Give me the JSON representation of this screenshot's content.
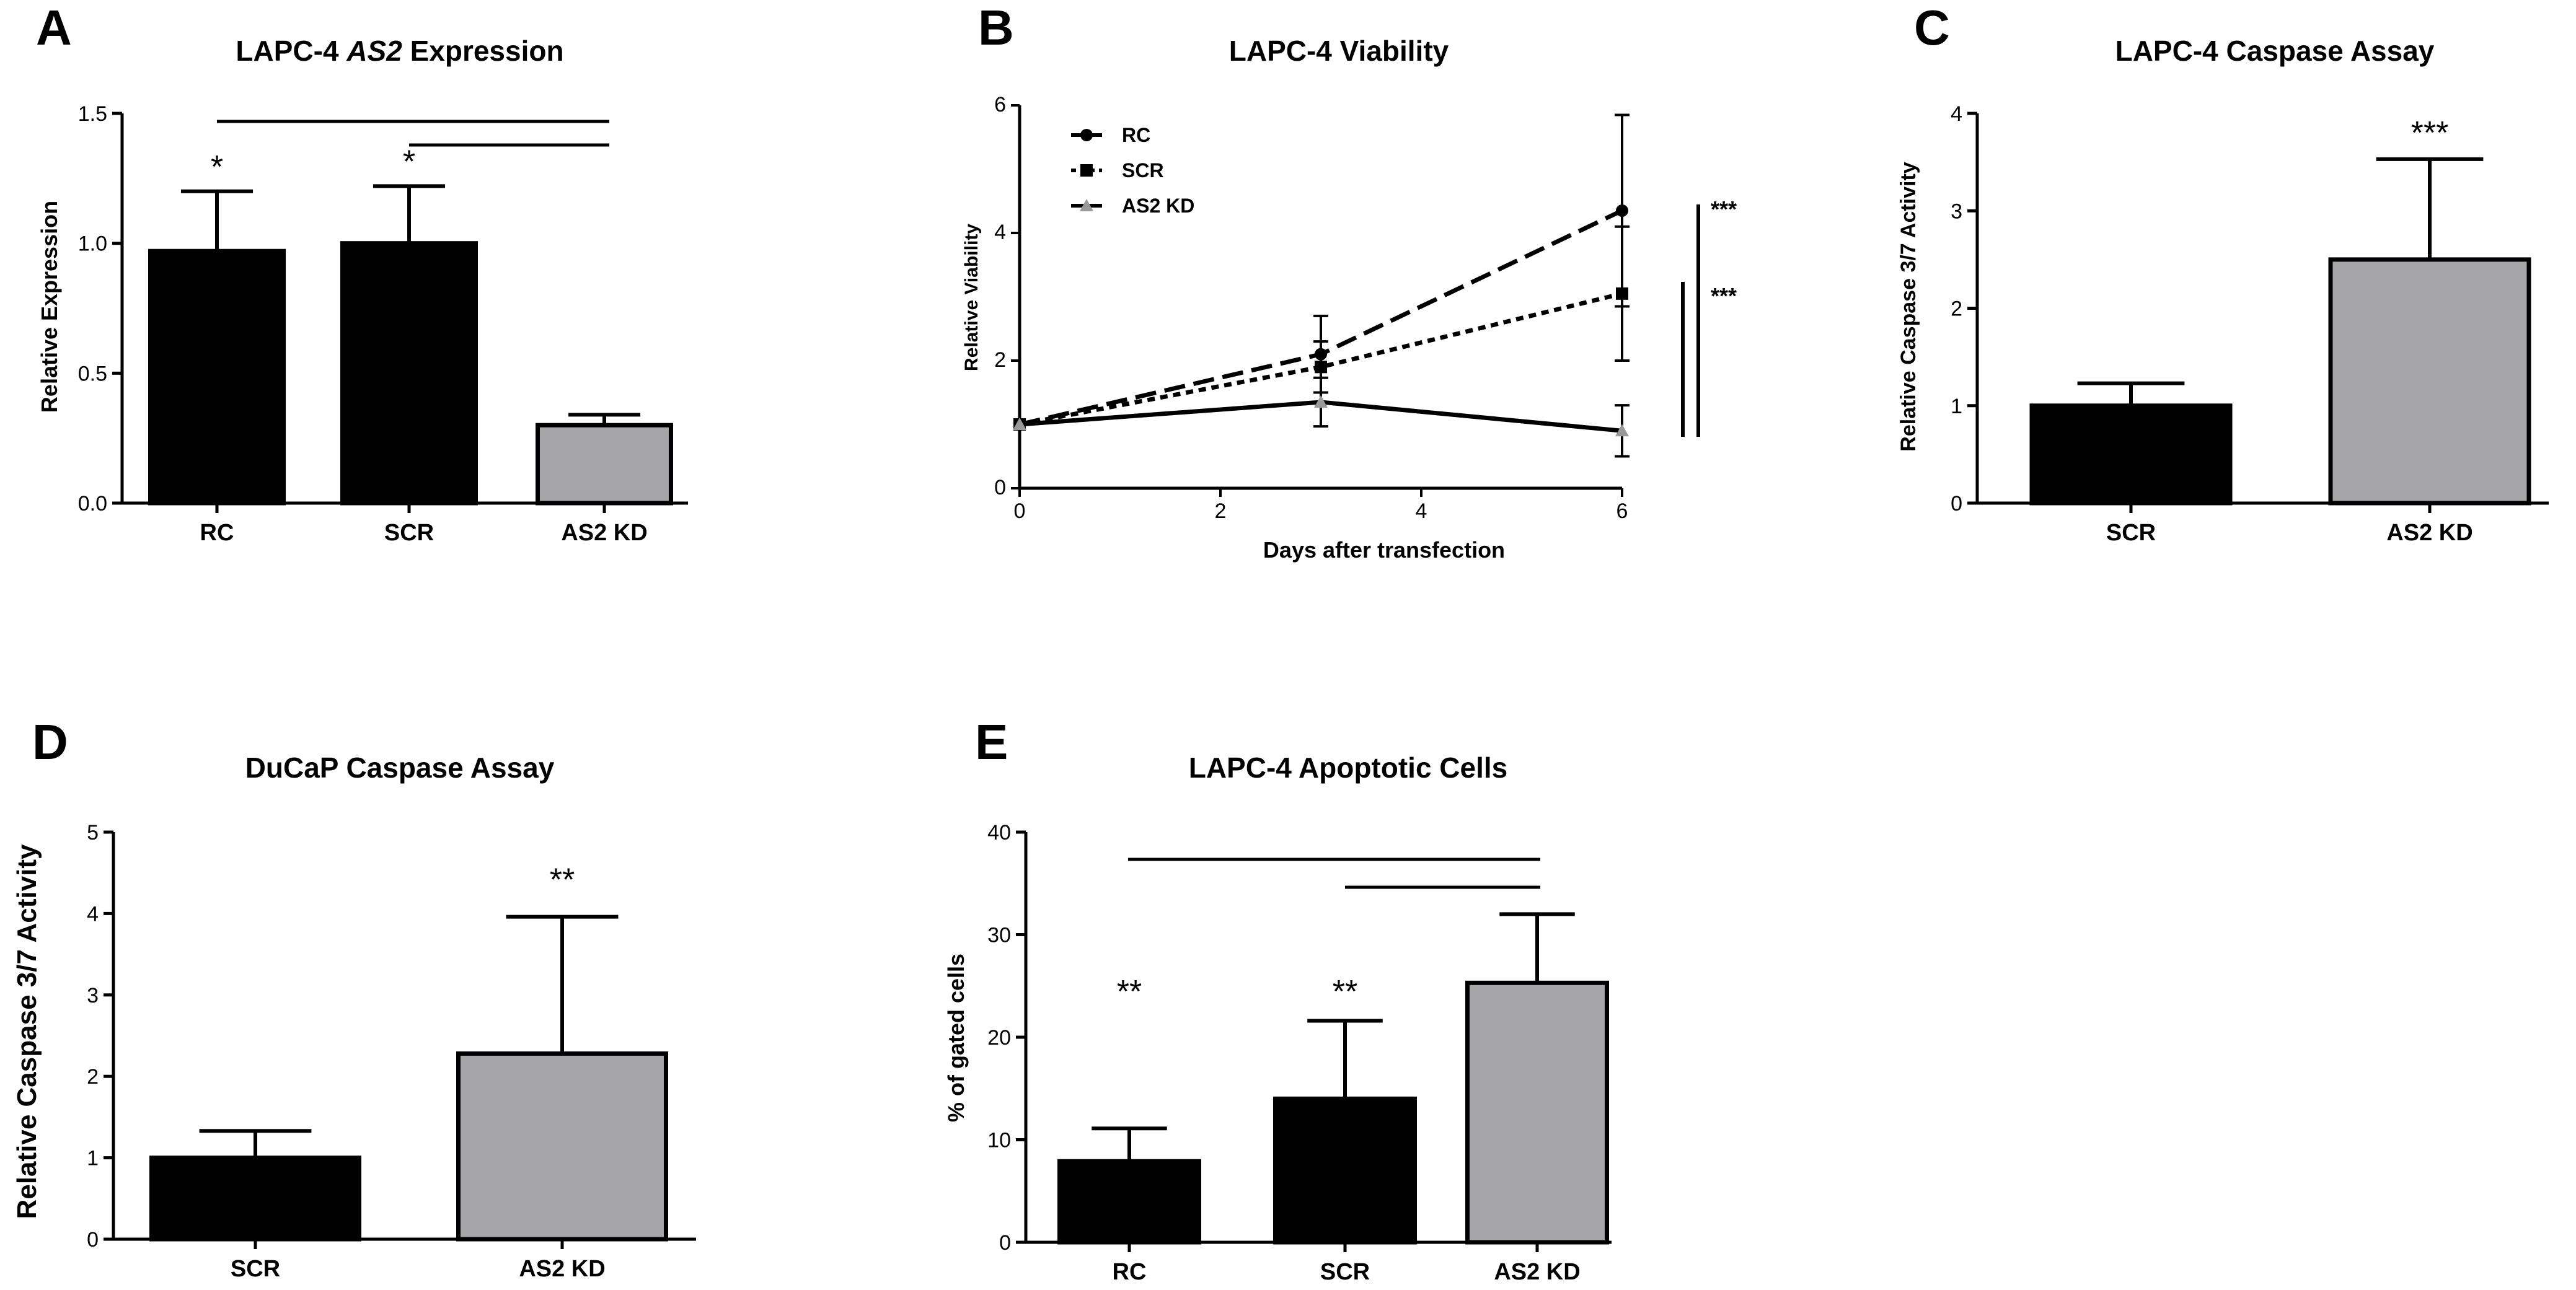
{
  "chart_data": [
    {
      "id": "A",
      "panel_label": "A",
      "type": "bar",
      "title_prefix": "LAPC-4 ",
      "title_italic": "AS2",
      "title_suffix": " Expression",
      "ylabel": "Relative Expression",
      "ylim": [
        0,
        1.5
      ],
      "yticks": [
        "0.0",
        "0.5",
        "1.0",
        "1.5"
      ],
      "categories": [
        "RC",
        "SCR",
        "AS2 KD"
      ],
      "values": [
        0.97,
        1.0,
        0.3
      ],
      "errors": [
        0.23,
        0.22,
        0.04
      ],
      "colors": [
        "#000000",
        "#000000",
        "#a6a6a8"
      ],
      "significance": [
        "*",
        "*",
        ""
      ]
    },
    {
      "id": "B",
      "panel_label": "B",
      "type": "line",
      "title": "LAPC-4 Viability",
      "xlabel": "Days after transfection",
      "ylabel": "Relative Viability",
      "xlim": [
        0,
        6
      ],
      "ylim": [
        0,
        6
      ],
      "xticks": [
        "0",
        "2",
        "4",
        "6"
      ],
      "yticks": [
        "0",
        "2",
        "4",
        "6"
      ],
      "x": [
        0,
        3,
        6
      ],
      "series": [
        {
          "name": "RC",
          "values": [
            1.0,
            2.1,
            4.35
          ],
          "errors": [
            0,
            0.6,
            1.5
          ],
          "color": "#000000",
          "marker": "circle",
          "dash": "long"
        },
        {
          "name": "SCR",
          "values": [
            1.0,
            1.9,
            3.05
          ],
          "errors": [
            0,
            0.4,
            1.05
          ],
          "color": "#000000",
          "marker": "square",
          "dash": "short"
        },
        {
          "name": "AS2 KD",
          "values": [
            1.0,
            1.35,
            0.9
          ],
          "errors": [
            0,
            0.38,
            0.4
          ],
          "color": "#000000",
          "marker": "triangle",
          "dash": "solid"
        }
      ],
      "significance": [
        "***",
        "***"
      ]
    },
    {
      "id": "C",
      "panel_label": "C",
      "type": "bar",
      "title": "LAPC-4 Caspase Assay",
      "ylabel": "Relative Caspase 3/7 Activity",
      "ylim": [
        0,
        4
      ],
      "yticks": [
        "0",
        "1",
        "2",
        "3",
        "4"
      ],
      "categories": [
        "SCR",
        "AS2 KD"
      ],
      "values": [
        1.0,
        2.5
      ],
      "errors": [
        0.23,
        1.03
      ],
      "colors": [
        "#000000",
        "#a6a6a8"
      ],
      "significance": [
        "",
        "***"
      ]
    },
    {
      "id": "D",
      "panel_label": "D",
      "type": "bar",
      "title": "DuCaP Caspase Assay",
      "ylabel": "Relative Caspase 3/7 Activity",
      "ylim": [
        0,
        5
      ],
      "yticks": [
        "0",
        "1",
        "2",
        "3",
        "4",
        "5"
      ],
      "categories": [
        "SCR",
        "AS2 KD"
      ],
      "values": [
        1.0,
        2.28
      ],
      "errors": [
        0.33,
        1.68
      ],
      "colors": [
        "#000000",
        "#a6a6a8"
      ],
      "significance": [
        "",
        "**"
      ]
    },
    {
      "id": "E",
      "panel_label": "E",
      "type": "bar",
      "title": "LAPC-4 Apoptotic Cells",
      "ylabel": "% of gated cells",
      "ylim": [
        0,
        40
      ],
      "yticks": [
        "0",
        "10",
        "20",
        "30",
        "40"
      ],
      "categories": [
        "RC",
        "SCR",
        "AS2 KD"
      ],
      "values": [
        7.9,
        14.0,
        25.3
      ],
      "errors": [
        3.2,
        7.6,
        6.7
      ],
      "colors": [
        "#000000",
        "#000000",
        "#a6a6a8"
      ],
      "significance": [
        "**",
        "**",
        ""
      ]
    }
  ]
}
